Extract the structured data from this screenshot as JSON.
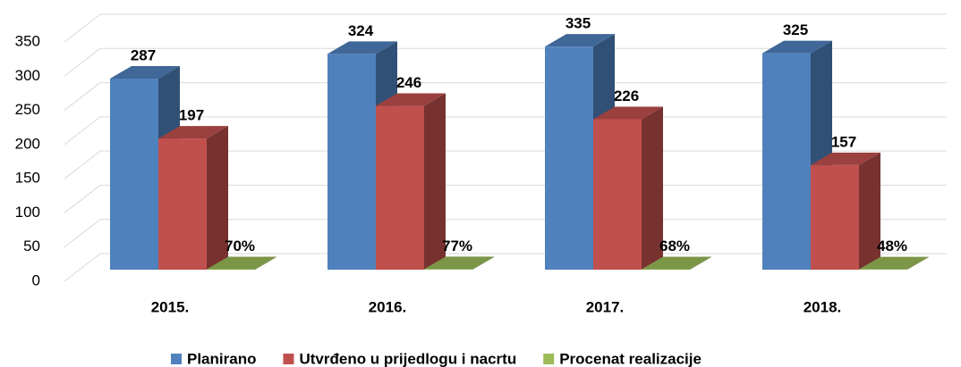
{
  "chart_data": {
    "type": "bar3d",
    "categories": [
      "2015.",
      "2016.",
      "2017.",
      "2018."
    ],
    "series": [
      {
        "name": "Planirano",
        "color": "#4f81bd",
        "values": [
          287,
          324,
          335,
          325
        ]
      },
      {
        "name": "Utvrđeno u prijedlogu i nacrtu",
        "color": "#c0504d",
        "values": [
          197,
          246,
          226,
          157
        ]
      },
      {
        "name": "Procenat realizacije",
        "color": "#9bbb59",
        "values": [
          0.7,
          0.77,
          0.68,
          0.48
        ],
        "value_labels": [
          "70%",
          "77%",
          "68%",
          "48%"
        ]
      }
    ],
    "ylim": [
      0,
      350
    ],
    "yticks": [
      0,
      50,
      100,
      150,
      200,
      250,
      300,
      350
    ],
    "grid": true,
    "legend": "bottom"
  }
}
